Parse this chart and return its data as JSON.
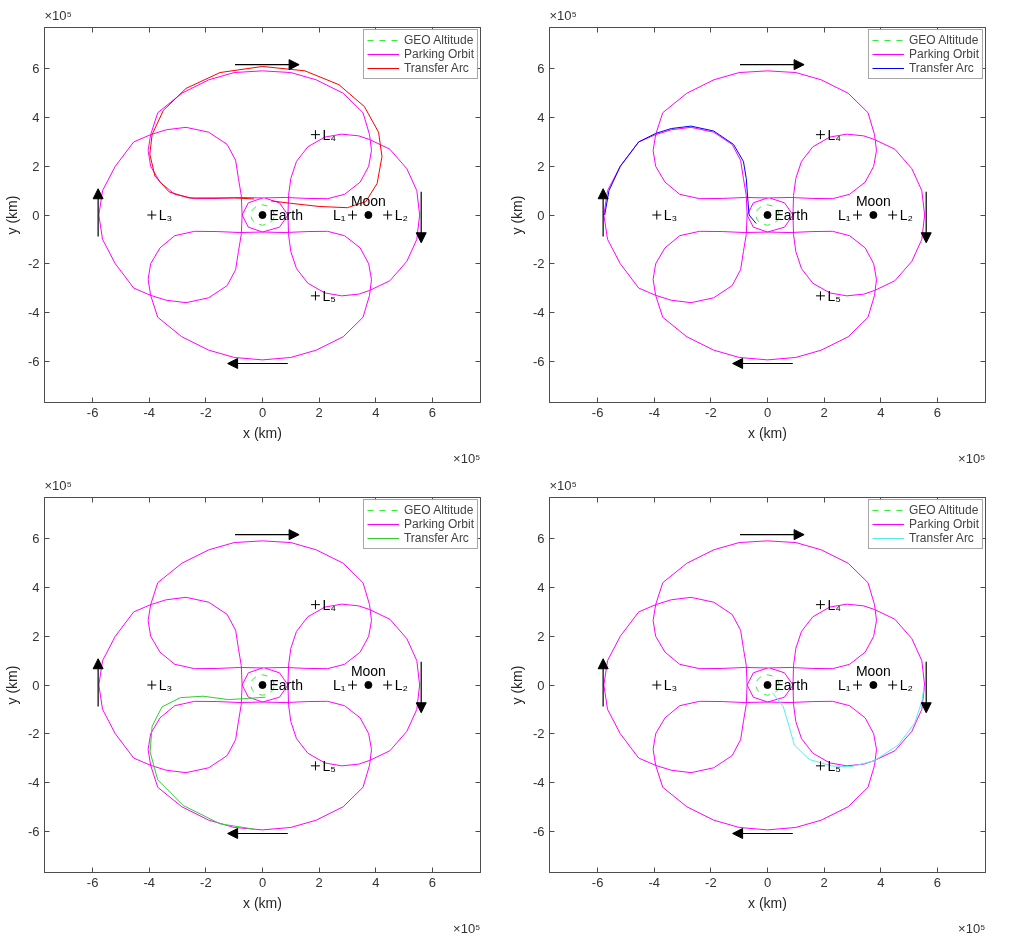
{
  "chart_data": [
    {
      "type": "line",
      "xlabel": "x (km)",
      "ylabel": "y (km)",
      "xlim": [
        -7.7,
        7.7
      ],
      "ylim": [
        -7.7,
        7.7
      ],
      "xticks": [
        -6,
        -4,
        -2,
        0,
        2,
        4,
        6
      ],
      "yticks": [
        -6,
        -4,
        -2,
        0,
        2,
        4,
        6
      ],
      "grid": false,
      "legend": "top right",
      "annotations": [
        "×10⁵",
        "×10⁵",
        {
          "text": "Earth",
          "x": 0,
          "y": 0
        },
        {
          "text": "Moon",
          "x": 3.74,
          "y": 0
        },
        {
          "text": "L₁",
          "x": 3.18,
          "y": 0
        },
        {
          "text": "L₂",
          "x": 4.42,
          "y": 0
        },
        {
          "text": "L₃",
          "x": -3.91,
          "y": 0
        },
        {
          "text": "L₄",
          "x": 1.87,
          "y": 3.3
        },
        {
          "text": "L₅",
          "x": 1.87,
          "y": -3.32
        }
      ],
      "series": [
        {
          "name": "GEO Altitude",
          "color": "#33ee33",
          "line_style": "dashed",
          "x": [
            0.42,
            0.36,
            0.21,
            0,
            -0.21,
            -0.36,
            -0.42,
            -0.36,
            -0.21,
            0,
            0.21,
            0.36,
            0.41
          ],
          "values": [
            0,
            0.21,
            0.36,
            0.42,
            0.36,
            0.21,
            0,
            -0.21,
            -0.36,
            -0.42,
            -0.36,
            -0.21,
            -0.06
          ]
        },
        {
          "name": "Parking Orbit",
          "color": "#ff00ff",
          "x": [
            0,
            -0.8,
            -1.6,
            -2.4,
            -3.1,
            -3.62,
            -3.95,
            -4.04,
            -3.95,
            -3.7,
            -2.85,
            -1.9,
            -1.0,
            0,
            1.0,
            1.9,
            2.85,
            3.55,
            3.78,
            3.85,
            3.75,
            3.45,
            2.9,
            2.3,
            1.6,
            0.8,
            0,
            -0.5,
            -0.72,
            -0.75,
            -0.85,
            -0.95,
            -1.25,
            -1.9,
            -2.7,
            -3.4,
            -3.95,
            -4.55,
            -5.2,
            -5.65,
            -5.78,
            -5.65,
            -5.2,
            -4.55,
            -3.95,
            -3.4,
            -2.7,
            -1.9,
            -1.25,
            -0.95,
            -0.85,
            -0.75,
            -0.72,
            -0.5,
            0,
            0.8,
            1.6,
            2.3,
            2.9,
            3.45,
            3.75,
            3.85,
            3.78,
            3.55,
            2.85,
            1.9,
            1.0,
            0,
            -1.0,
            -1.9,
            -2.85,
            -3.7,
            -3.95,
            -4.04,
            -3.95,
            -3.62,
            -3.1,
            -2.4,
            -1.6,
            -0.8,
            0,
            0.6,
            0.9,
            0.92,
            1.0,
            1.2,
            1.6,
            2.2,
            2.8,
            3.4,
            3.78,
            4.5,
            5.1,
            5.45,
            5.55,
            5.45,
            5.1,
            4.5,
            3.78,
            3.4,
            2.8,
            2.2,
            1.6,
            1.2,
            1.0,
            0.92,
            0.9,
            0.6,
            0.1
          ],
          "values": [
            0.7,
            0.72,
            0.68,
            0.67,
            0.85,
            1.35,
            2.0,
            2.65,
            3.3,
            4.2,
            5.0,
            5.55,
            5.85,
            5.92,
            5.85,
            5.55,
            5.0,
            4.2,
            3.3,
            2.65,
            2.0,
            1.35,
            0.85,
            0.67,
            0.68,
            0.72,
            0.7,
            0.5,
            0,
            -0.8,
            -1.5,
            -2.25,
            -2.9,
            -3.4,
            -3.6,
            -3.5,
            -3.3,
            -3.0,
            -2.0,
            -1.0,
            0,
            1.0,
            2.0,
            3.0,
            3.3,
            3.5,
            3.6,
            3.4,
            2.9,
            2.25,
            1.5,
            0.8,
            0,
            -0.5,
            -0.7,
            -0.72,
            -0.68,
            -0.67,
            -0.85,
            -1.35,
            -2.0,
            -2.65,
            -3.3,
            -4.2,
            -5.0,
            -5.55,
            -5.85,
            -5.95,
            -5.85,
            -5.55,
            -5.0,
            -4.2,
            -3.3,
            -2.65,
            -2.0,
            -1.35,
            -0.85,
            -0.67,
            -0.68,
            -0.72,
            -0.7,
            -0.5,
            0,
            0.8,
            1.5,
            2.2,
            2.8,
            3.2,
            3.32,
            3.25,
            3.1,
            2.7,
            1.9,
            1.0,
            0,
            -1.0,
            -1.9,
            -2.7,
            -3.1,
            -3.25,
            -3.32,
            -3.2,
            -2.8,
            -2.2,
            -1.5,
            -0.8,
            0,
            0.5,
            0.69
          ]
        },
        {
          "name": "Transfer Arc",
          "color": "#ff0000",
          "x": [
            -0.3,
            -1.0,
            -1.8,
            -2.6,
            -3.3,
            -3.8,
            -3.98,
            -3.9,
            -3.5,
            -2.7,
            -1.5,
            0,
            1.5,
            2.7,
            3.6,
            4.1,
            4.22,
            4.05,
            3.65,
            3.0,
            2.0,
            1.0,
            0.3
          ],
          "values": [
            0.66,
            0.7,
            0.7,
            0.7,
            0.95,
            1.6,
            2.5,
            3.3,
            4.3,
            5.2,
            5.85,
            6.1,
            5.92,
            5.35,
            4.45,
            3.4,
            2.4,
            1.3,
            0.55,
            0.3,
            0.35,
            0.48,
            0.58
          ]
        },
        {
          "type": "scatter",
          "marker": "circle",
          "color": "#000000",
          "x": [
            0
          ],
          "values": [
            0
          ]
        },
        {
          "type": "scatter",
          "marker": "circle",
          "color": "#000000",
          "x": [
            3.74
          ],
          "values": [
            0
          ]
        },
        {
          "type": "scatter",
          "marker": "cross",
          "color": "#000000",
          "x": [
            3.18,
            4.42,
            -3.91,
            1.87,
            1.87
          ],
          "values": [
            0,
            0,
            0,
            3.3,
            -3.32
          ]
        }
      ]
    },
    {
      "type": "line",
      "xlabel": "x (km)",
      "ylabel": "y (km)",
      "xlim": [
        -7.7,
        7.7
      ],
      "ylim": [
        -7.7,
        7.7
      ],
      "xticks": [
        -6,
        -4,
        -2,
        0,
        2,
        4,
        6
      ],
      "yticks": [
        -6,
        -4,
        -2,
        0,
        2,
        4,
        6
      ],
      "grid": false,
      "legend": "top right",
      "annotations": [
        "×10⁵",
        "×10⁵",
        {
          "text": "Earth",
          "x": 0,
          "y": 0
        },
        {
          "text": "Moon",
          "x": 3.74,
          "y": 0
        },
        {
          "text": "L₁",
          "x": 3.18,
          "y": 0
        },
        {
          "text": "L₂",
          "x": 4.42,
          "y": 0
        },
        {
          "text": "L₃",
          "x": -3.91,
          "y": 0
        },
        {
          "text": "L₄",
          "x": 1.87,
          "y": 3.3
        },
        {
          "text": "L₅",
          "x": 1.87,
          "y": -3.32
        }
      ],
      "series": [
        {
          "name": "GEO Altitude",
          "color": "#33ee33",
          "line_style": "dashed",
          "x": [
            0.42,
            0.36,
            0.21,
            0,
            -0.21,
            -0.36,
            -0.42,
            -0.36,
            -0.21,
            0,
            0.21,
            0.36,
            0.41
          ],
          "values": [
            0,
            0.21,
            0.36,
            0.42,
            0.36,
            0.21,
            0,
            -0.21,
            -0.36,
            -0.42,
            -0.36,
            -0.21,
            -0.06
          ]
        },
        {
          "name": "Parking Orbit",
          "color": "#ff00ff",
          "x": [
            0,
            -0.8,
            -1.6,
            -2.4,
            -3.1,
            -3.62,
            -3.95,
            -4.04,
            -3.95,
            -3.7,
            -2.85,
            -1.9,
            -1.0,
            0,
            1.0,
            1.9,
            2.85,
            3.55,
            3.78,
            3.85,
            3.75,
            3.45,
            2.9,
            2.3,
            1.6,
            0.8,
            0,
            -0.5,
            -0.72,
            -0.75,
            -0.85,
            -0.95,
            -1.25,
            -1.9,
            -2.7,
            -3.4,
            -3.95,
            -4.55,
            -5.2,
            -5.65,
            -5.78,
            -5.65,
            -5.2,
            -4.55,
            -3.95,
            -3.4,
            -2.7,
            -1.9,
            -1.25,
            -0.95,
            -0.85,
            -0.75,
            -0.72,
            -0.5,
            0,
            0.8,
            1.6,
            2.3,
            2.9,
            3.45,
            3.75,
            3.85,
            3.78,
            3.55,
            2.85,
            1.9,
            1.0,
            0,
            -1.0,
            -1.9,
            -2.85,
            -3.7,
            -3.95,
            -4.04,
            -3.95,
            -3.62,
            -3.1,
            -2.4,
            -1.6,
            -0.8,
            0,
            0.6,
            0.9,
            0.92,
            1.0,
            1.2,
            1.6,
            2.2,
            2.8,
            3.4,
            3.78,
            4.5,
            5.1,
            5.45,
            5.55,
            5.45,
            5.1,
            4.5,
            3.78,
            3.4,
            2.8,
            2.2,
            1.6,
            1.2,
            1.0,
            0.92,
            0.9,
            0.6,
            0.1
          ],
          "values": [
            0.7,
            0.72,
            0.68,
            0.67,
            0.85,
            1.35,
            2.0,
            2.65,
            3.3,
            4.2,
            5.0,
            5.55,
            5.85,
            5.92,
            5.85,
            5.55,
            5.0,
            4.2,
            3.3,
            2.65,
            2.0,
            1.35,
            0.85,
            0.67,
            0.68,
            0.72,
            0.7,
            0.5,
            0,
            -0.8,
            -1.5,
            -2.25,
            -2.9,
            -3.4,
            -3.6,
            -3.5,
            -3.3,
            -3.0,
            -2.0,
            -1.0,
            0,
            1.0,
            2.0,
            3.0,
            3.3,
            3.5,
            3.6,
            3.4,
            2.9,
            2.25,
            1.5,
            0.8,
            0,
            -0.5,
            -0.7,
            -0.72,
            -0.68,
            -0.67,
            -0.85,
            -1.35,
            -2.0,
            -2.65,
            -3.3,
            -4.2,
            -5.0,
            -5.55,
            -5.85,
            -5.95,
            -5.85,
            -5.55,
            -5.0,
            -4.2,
            -3.3,
            -2.65,
            -2.0,
            -1.35,
            -0.85,
            -0.67,
            -0.68,
            -0.72,
            -0.7,
            -0.5,
            0,
            0.8,
            1.5,
            2.2,
            2.8,
            3.2,
            3.32,
            3.25,
            3.1,
            2.7,
            1.9,
            1.0,
            0,
            -1.0,
            -1.9,
            -2.7,
            -3.1,
            -3.25,
            -3.32,
            -3.2,
            -2.8,
            -2.2,
            -1.5,
            -0.8,
            0,
            0.5,
            0.69
          ]
        },
        {
          "name": "Transfer Arc",
          "color": "#0000ff",
          "x": [
            -5.75,
            -5.6,
            -5.2,
            -4.55,
            -3.95,
            -3.4,
            -2.7,
            -1.9,
            -1.2,
            -0.85,
            -0.75,
            -0.7,
            -0.65,
            -0.4
          ],
          "values": [
            0,
            1.0,
            2.0,
            3.0,
            3.35,
            3.55,
            3.65,
            3.45,
            2.9,
            2.2,
            1.5,
            0.7,
            0,
            -0.35
          ]
        },
        {
          "type": "scatter",
          "marker": "circle",
          "color": "#000000",
          "x": [
            0
          ],
          "values": [
            0
          ]
        },
        {
          "type": "scatter",
          "marker": "circle",
          "color": "#000000",
          "x": [
            3.74
          ],
          "values": [
            0
          ]
        },
        {
          "type": "scatter",
          "marker": "cross",
          "color": "#000000",
          "x": [
            3.18,
            4.42,
            -3.91,
            1.87,
            1.87
          ],
          "values": [
            0,
            0,
            0,
            3.3,
            -3.32
          ]
        }
      ]
    },
    {
      "type": "line",
      "xlabel": "x (km)",
      "ylabel": "y (km)",
      "xlim": [
        -7.7,
        7.7
      ],
      "ylim": [
        -7.7,
        7.7
      ],
      "xticks": [
        -6,
        -4,
        -2,
        0,
        2,
        4,
        6
      ],
      "yticks": [
        -6,
        -4,
        -2,
        0,
        2,
        4,
        6
      ],
      "grid": false,
      "legend": "top right",
      "annotations": [
        "×10⁵",
        "×10⁵",
        {
          "text": "Earth",
          "x": 0,
          "y": 0
        },
        {
          "text": "Moon",
          "x": 3.74,
          "y": 0
        },
        {
          "text": "L₁",
          "x": 3.18,
          "y": 0
        },
        {
          "text": "L₂",
          "x": 4.42,
          "y": 0
        },
        {
          "text": "L₃",
          "x": -3.91,
          "y": 0
        },
        {
          "text": "L₄",
          "x": 1.87,
          "y": 3.3
        },
        {
          "text": "L₅",
          "x": 1.87,
          "y": -3.32
        }
      ],
      "series": [
        {
          "name": "GEO Altitude",
          "color": "#33ee33",
          "line_style": "dashed",
          "x": [
            0.42,
            0.36,
            0.21,
            0,
            -0.21,
            -0.36,
            -0.42,
            -0.36,
            -0.21,
            0,
            0.21,
            0.36,
            0.41
          ],
          "values": [
            0,
            0.21,
            0.36,
            0.42,
            0.36,
            0.21,
            0,
            -0.21,
            -0.36,
            -0.42,
            -0.36,
            -0.21,
            -0.06
          ]
        },
        {
          "name": "Parking Orbit",
          "color": "#ff00ff",
          "x": [
            0,
            -0.8,
            -1.6,
            -2.4,
            -3.1,
            -3.62,
            -3.95,
            -4.04,
            -3.95,
            -3.7,
            -2.85,
            -1.9,
            -1.0,
            0,
            1.0,
            1.9,
            2.85,
            3.55,
            3.78,
            3.85,
            3.75,
            3.45,
            2.9,
            2.3,
            1.6,
            0.8,
            0,
            -0.5,
            -0.72,
            -0.75,
            -0.85,
            -0.95,
            -1.25,
            -1.9,
            -2.7,
            -3.4,
            -3.95,
            -4.55,
            -5.2,
            -5.65,
            -5.78,
            -5.65,
            -5.2,
            -4.55,
            -3.95,
            -3.4,
            -2.7,
            -1.9,
            -1.25,
            -0.95,
            -0.85,
            -0.75,
            -0.72,
            -0.5,
            0,
            0.8,
            1.6,
            2.3,
            2.9,
            3.45,
            3.75,
            3.85,
            3.78,
            3.55,
            2.85,
            1.9,
            1.0,
            0,
            -1.0,
            -1.9,
            -2.85,
            -3.7,
            -3.95,
            -4.04,
            -3.95,
            -3.62,
            -3.1,
            -2.4,
            -1.6,
            -0.8,
            0,
            0.6,
            0.9,
            0.92,
            1.0,
            1.2,
            1.6,
            2.2,
            2.8,
            3.4,
            3.78,
            4.5,
            5.1,
            5.45,
            5.55,
            5.45,
            5.1,
            4.5,
            3.78,
            3.4,
            2.8,
            2.2,
            1.6,
            1.2,
            1.0,
            0.92,
            0.9,
            0.6,
            0.1
          ],
          "values": [
            0.7,
            0.72,
            0.68,
            0.67,
            0.85,
            1.35,
            2.0,
            2.65,
            3.3,
            4.2,
            5.0,
            5.55,
            5.85,
            5.92,
            5.85,
            5.55,
            5.0,
            4.2,
            3.3,
            2.65,
            2.0,
            1.35,
            0.85,
            0.67,
            0.68,
            0.72,
            0.7,
            0.5,
            0,
            -0.8,
            -1.5,
            -2.25,
            -2.9,
            -3.4,
            -3.6,
            -3.5,
            -3.3,
            -3.0,
            -2.0,
            -1.0,
            0,
            1.0,
            2.0,
            3.0,
            3.3,
            3.5,
            3.6,
            3.4,
            2.9,
            2.25,
            1.5,
            0.8,
            0,
            -0.5,
            -0.7,
            -0.72,
            -0.68,
            -0.67,
            -0.85,
            -1.35,
            -2.0,
            -2.65,
            -3.3,
            -4.2,
            -5.0,
            -5.55,
            -5.85,
            -5.95,
            -5.85,
            -5.55,
            -5.0,
            -4.2,
            -3.3,
            -2.65,
            -2.0,
            -1.35,
            -0.85,
            -0.67,
            -0.68,
            -0.72,
            -0.7,
            -0.5,
            0,
            0.8,
            1.5,
            2.2,
            2.8,
            3.2,
            3.32,
            3.25,
            3.1,
            2.7,
            1.9,
            1.0,
            0,
            -1.0,
            -1.9,
            -2.7,
            -3.1,
            -3.25,
            -3.32,
            -3.2,
            -2.8,
            -2.2,
            -1.5,
            -0.8,
            0,
            0.5,
            0.69
          ]
        },
        {
          "name": "Transfer Arc",
          "color": "#33cc33",
          "x": [
            0.1,
            -0.5,
            -1.2,
            -2.1,
            -2.9,
            -3.55,
            -3.9,
            -3.97,
            -3.7,
            -2.8,
            -1.5,
            -0.3
          ],
          "values": [
            -0.5,
            -0.55,
            -0.6,
            -0.46,
            -0.52,
            -0.9,
            -1.7,
            -2.75,
            -3.9,
            -4.95,
            -5.7,
            -5.92
          ]
        },
        {
          "type": "scatter",
          "marker": "circle",
          "color": "#000000",
          "x": [
            0
          ],
          "values": [
            0
          ]
        },
        {
          "type": "scatter",
          "marker": "circle",
          "color": "#000000",
          "x": [
            3.74
          ],
          "values": [
            0
          ]
        },
        {
          "type": "scatter",
          "marker": "cross",
          "color": "#000000",
          "x": [
            3.18,
            4.42,
            -3.91,
            1.87,
            1.87
          ],
          "values": [
            0,
            0,
            0,
            3.3,
            -3.32
          ]
        }
      ]
    },
    {
      "type": "line",
      "xlabel": "x (km)",
      "ylabel": "y (km)",
      "xlim": [
        -7.7,
        7.7
      ],
      "ylim": [
        -7.7,
        7.7
      ],
      "xticks": [
        -6,
        -4,
        -2,
        0,
        2,
        4,
        6
      ],
      "yticks": [
        -6,
        -4,
        -2,
        0,
        2,
        4,
        6
      ],
      "grid": false,
      "legend": "top right",
      "annotations": [
        "×10⁵",
        "×10⁵",
        {
          "text": "Earth",
          "x": 0,
          "y": 0
        },
        {
          "text": "Moon",
          "x": 3.74,
          "y": 0
        },
        {
          "text": "L₁",
          "x": 3.18,
          "y": 0
        },
        {
          "text": "L₂",
          "x": 4.42,
          "y": 0
        },
        {
          "text": "L₃",
          "x": -3.91,
          "y": 0
        },
        {
          "text": "L₄",
          "x": 1.87,
          "y": 3.3
        },
        {
          "text": "L₅",
          "x": 1.87,
          "y": -3.32
        }
      ],
      "series": [
        {
          "name": "GEO Altitude",
          "color": "#33ee33",
          "line_style": "dashed",
          "x": [
            0.42,
            0.36,
            0.21,
            0,
            -0.21,
            -0.36,
            -0.42,
            -0.36,
            -0.21,
            0,
            0.21,
            0.36,
            0.41
          ],
          "values": [
            0,
            0.21,
            0.36,
            0.42,
            0.36,
            0.21,
            0,
            -0.21,
            -0.36,
            -0.42,
            -0.36,
            -0.21,
            -0.06
          ]
        },
        {
          "name": "Parking Orbit",
          "color": "#ff00ff",
          "x": [
            0,
            -0.8,
            -1.6,
            -2.4,
            -3.1,
            -3.62,
            -3.95,
            -4.04,
            -3.95,
            -3.7,
            -2.85,
            -1.9,
            -1.0,
            0,
            1.0,
            1.9,
            2.85,
            3.55,
            3.78,
            3.85,
            3.75,
            3.45,
            2.9,
            2.3,
            1.6,
            0.8,
            0,
            -0.5,
            -0.72,
            -0.75,
            -0.85,
            -0.95,
            -1.25,
            -1.9,
            -2.7,
            -3.4,
            -3.95,
            -4.55,
            -5.2,
            -5.65,
            -5.78,
            -5.65,
            -5.2,
            -4.55,
            -3.95,
            -3.4,
            -2.7,
            -1.9,
            -1.25,
            -0.95,
            -0.85,
            -0.75,
            -0.72,
            -0.5,
            0,
            0.8,
            1.6,
            2.3,
            2.9,
            3.45,
            3.75,
            3.85,
            3.78,
            3.55,
            2.85,
            1.9,
            1.0,
            0,
            -1.0,
            -1.9,
            -2.85,
            -3.7,
            -3.95,
            -4.04,
            -3.95,
            -3.62,
            -3.1,
            -2.4,
            -1.6,
            -0.8,
            0,
            0.6,
            0.9,
            0.92,
            1.0,
            1.2,
            1.6,
            2.2,
            2.8,
            3.4,
            3.78,
            4.5,
            5.1,
            5.45,
            5.55,
            5.45,
            5.1,
            4.5,
            3.78,
            3.4,
            2.8,
            2.2,
            1.6,
            1.2,
            1.0,
            0.92,
            0.9,
            0.6,
            0.1
          ],
          "values": [
            0.7,
            0.72,
            0.68,
            0.67,
            0.85,
            1.35,
            2.0,
            2.65,
            3.3,
            4.2,
            5.0,
            5.55,
            5.85,
            5.92,
            5.85,
            5.55,
            5.0,
            4.2,
            3.3,
            2.65,
            2.0,
            1.35,
            0.85,
            0.67,
            0.68,
            0.72,
            0.7,
            0.5,
            0,
            -0.8,
            -1.5,
            -2.25,
            -2.9,
            -3.4,
            -3.6,
            -3.5,
            -3.3,
            -3.0,
            -2.0,
            -1.0,
            0,
            1.0,
            2.0,
            3.0,
            3.3,
            3.5,
            3.6,
            3.4,
            2.9,
            2.25,
            1.5,
            0.8,
            0,
            -0.5,
            -0.7,
            -0.72,
            -0.68,
            -0.67,
            -0.85,
            -1.35,
            -2.0,
            -2.65,
            -3.3,
            -4.2,
            -5.0,
            -5.55,
            -5.85,
            -5.95,
            -5.85,
            -5.55,
            -5.0,
            -4.2,
            -3.3,
            -2.65,
            -2.0,
            -1.35,
            -0.85,
            -0.67,
            -0.68,
            -0.72,
            -0.7,
            -0.5,
            0,
            0.8,
            1.5,
            2.2,
            2.8,
            3.2,
            3.32,
            3.25,
            3.1,
            2.7,
            1.9,
            1.0,
            0,
            -1.0,
            -1.9,
            -2.7,
            -3.1,
            -3.25,
            -3.32,
            -3.2,
            -2.8,
            -2.2,
            -1.5,
            -0.8,
            0,
            0.5,
            0.69
          ]
        },
        {
          "name": "Transfer Arc",
          "color": "#55eeee",
          "x": [
            0.17,
            0.56,
            0.76,
            0.95,
            1.48,
            2.26,
            2.92,
            3.76,
            4.61,
            5.2,
            5.46,
            5.53
          ],
          "values": [
            -0.31,
            -0.9,
            -1.69,
            -2.47,
            -3.06,
            -3.32,
            -3.36,
            -3.12,
            -2.47,
            -1.56,
            -0.64,
            -0.05
          ]
        },
        {
          "type": "scatter",
          "marker": "circle",
          "color": "#000000",
          "x": [
            0
          ],
          "values": [
            0
          ]
        },
        {
          "type": "scatter",
          "marker": "circle",
          "color": "#000000",
          "x": [
            3.74
          ],
          "values": [
            0
          ]
        },
        {
          "type": "scatter",
          "marker": "cross",
          "color": "#000000",
          "x": [
            3.18,
            4.42,
            -3.91,
            1.87,
            1.87
          ],
          "values": [
            0,
            0,
            0,
            3.3,
            -3.32
          ]
        }
      ]
    }
  ]
}
